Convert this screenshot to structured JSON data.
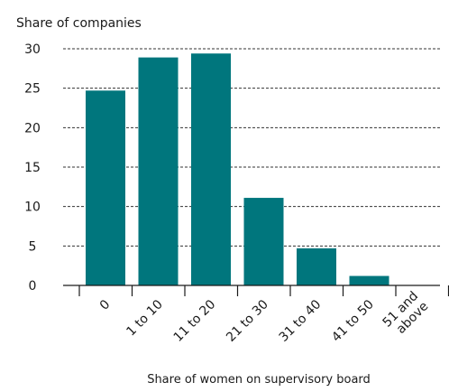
{
  "chart_data": {
    "type": "bar",
    "title": "",
    "ylabel": "Share of companies",
    "xlabel": "Share of women on supervisory board",
    "categories": [
      "0",
      "1 to 10",
      "11 to 20",
      "21 to 30",
      "31 to 40",
      "41 to 50",
      "51 and above"
    ],
    "values": [
      24.7,
      28.9,
      29.4,
      11.1,
      4.7,
      1.2,
      0
    ],
    "ylim": [
      0,
      30
    ],
    "yticks": [
      0,
      5,
      10,
      15,
      20,
      25,
      30
    ],
    "grid": true,
    "legend": "none",
    "bar_color": "#00767d"
  }
}
